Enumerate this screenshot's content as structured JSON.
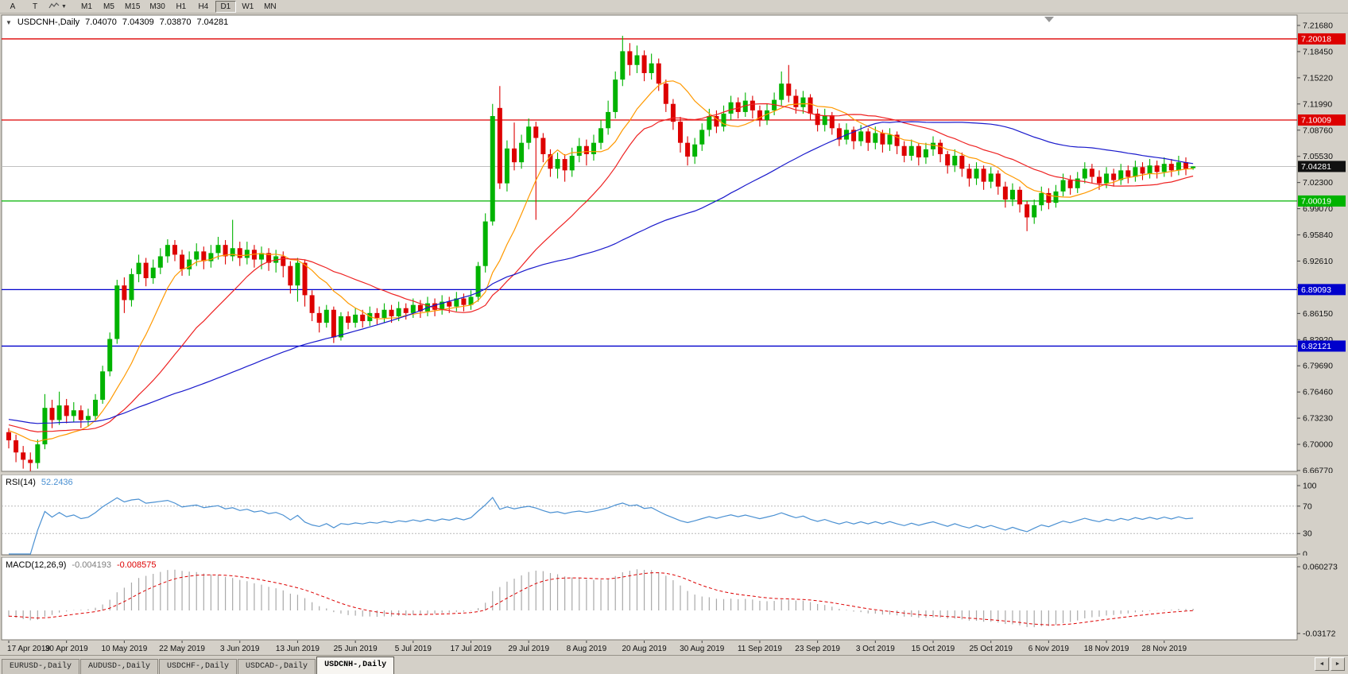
{
  "toolbar": {
    "buttons": [
      "A",
      "T"
    ],
    "timeframes": [
      "M1",
      "M5",
      "M15",
      "M30",
      "H1",
      "H4",
      "D1",
      "W1",
      "MN"
    ],
    "active_timeframe": "D1"
  },
  "header": {
    "symbol": "USDCNH-,Daily",
    "open": "7.04070",
    "high": "7.04309",
    "low": "7.03870",
    "close": "7.04281"
  },
  "rsi": {
    "label": "RSI(14)",
    "value": "52.2436",
    "period": 14,
    "levels": [
      100,
      70,
      30,
      0
    ],
    "line_color": "#4a90d2"
  },
  "macd": {
    "label": "MACD(12,26,9)",
    "value_main": "-0.004193",
    "value_signal": "-0.008575",
    "scale_top": "0.060273",
    "scale_bottom": "-0.03172",
    "hist_color": "#a9a9a9",
    "signal_color": "#dd0000"
  },
  "tabs": {
    "items": [
      "EURUSD-,Daily",
      "AUDUSD-,Daily",
      "USDCHF-,Daily",
      "USDCAD-,Daily",
      "USDCNH-,Daily"
    ],
    "active": "USDCNH-,Daily",
    "scroll_left": "◄",
    "scroll_right": "►"
  },
  "chart_data": {
    "type": "candlestick",
    "symbol": "USDCNH",
    "timeframe": "Daily",
    "bull_color": "#00b300",
    "bear_color": "#dd0000",
    "price_scale": {
      "top": 7.2168,
      "step": 0.0323
    },
    "price_ticks": [
      "7.21680",
      "7.18450",
      "7.15220",
      "7.11990",
      "7.08760",
      "7.05530",
      "7.02300",
      "6.99070",
      "6.95840",
      "6.92610",
      "6.89380",
      "6.86150",
      "6.82920",
      "6.79690",
      "6.76460",
      "6.73230",
      "6.70000",
      "6.66770"
    ],
    "x_labels": [
      "17 Apr 2019",
      "30 Apr 2019",
      "10 May 2019",
      "22 May 2019",
      "3 Jun 2019",
      "13 Jun 2019",
      "25 Jun 2019",
      "5 Jul 2019",
      "17 Jul 2019",
      "29 Jul 2019",
      "8 Aug 2019",
      "20 Aug 2019",
      "30 Aug 2019",
      "11 Sep 2019",
      "23 Sep 2019",
      "3 Oct 2019",
      "15 Oct 2019",
      "25 Oct 2019",
      "6 Nov 2019",
      "18 Nov 2019",
      "28 Nov 2019"
    ],
    "x_label_every": 8,
    "hlines": [
      {
        "price": 7.20018,
        "label": "7.20018",
        "color": "#dd0000"
      },
      {
        "price": 7.10009,
        "label": "7.10009",
        "color": "#dd0000"
      },
      {
        "price": 7.00019,
        "label": "7.00019",
        "color": "#00b300"
      },
      {
        "price": 6.89093,
        "label": "6.89093",
        "color": "#0000cc"
      },
      {
        "price": 6.82121,
        "label": "6.82121",
        "color": "#0000cc"
      }
    ],
    "bid": {
      "price": 7.04281,
      "label": "7.04281",
      "color": "#c0c0c0",
      "badge_color": "#111111"
    },
    "moving_averages": [
      {
        "period": 10,
        "color": "#ff9900"
      },
      {
        "period": 22,
        "color": "#ee2222"
      },
      {
        "period": 55,
        "color": "#1a1acc"
      }
    ],
    "ma_seed_closes": [
      6.758,
      6.755,
      6.752,
      6.75,
      6.747,
      6.744,
      6.742,
      6.74,
      6.738,
      6.736,
      6.735,
      6.734,
      6.732,
      6.731,
      6.73,
      6.729,
      6.728,
      6.727,
      6.726,
      6.725,
      6.724,
      6.723,
      6.722,
      6.721,
      6.72,
      6.719,
      6.718,
      6.716,
      6.714,
      6.712
    ],
    "candles": [
      [
        6.715,
        6.72,
        6.695,
        6.705
      ],
      [
        6.705,
        6.712,
        6.678,
        6.69
      ],
      [
        6.69,
        6.698,
        6.67,
        6.681
      ],
      [
        6.681,
        6.69,
        6.667,
        6.677
      ],
      [
        6.677,
        6.706,
        6.67,
        6.7
      ],
      [
        6.7,
        6.762,
        6.694,
        6.745
      ],
      [
        6.745,
        6.755,
        6.72,
        6.73
      ],
      [
        6.73,
        6.765,
        6.724,
        6.748
      ],
      [
        6.748,
        6.756,
        6.726,
        6.735
      ],
      [
        6.735,
        6.752,
        6.728,
        6.742
      ],
      [
        6.742,
        6.748,
        6.72,
        6.73
      ],
      [
        6.73,
        6.744,
        6.722,
        6.735
      ],
      [
        6.735,
        6.762,
        6.73,
        6.755
      ],
      [
        6.755,
        6.797,
        6.75,
        6.79
      ],
      [
        6.79,
        6.838,
        6.784,
        6.83
      ],
      [
        6.83,
        6.903,
        6.824,
        6.896
      ],
      [
        6.896,
        6.906,
        6.862,
        6.878
      ],
      [
        6.878,
        6.917,
        6.87,
        6.91
      ],
      [
        6.91,
        6.934,
        6.9,
        6.924
      ],
      [
        6.924,
        6.93,
        6.895,
        6.905
      ],
      [
        6.905,
        6.928,
        6.898,
        6.918
      ],
      [
        6.918,
        6.942,
        6.91,
        6.932
      ],
      [
        6.932,
        6.953,
        6.924,
        6.946
      ],
      [
        6.946,
        6.952,
        6.926,
        6.934
      ],
      [
        6.934,
        6.94,
        6.908,
        6.916
      ],
      [
        6.916,
        6.938,
        6.908,
        6.928
      ],
      [
        6.928,
        6.948,
        6.92,
        6.938
      ],
      [
        6.938,
        6.944,
        6.916,
        6.926
      ],
      [
        6.926,
        6.946,
        6.918,
        6.936
      ],
      [
        6.936,
        6.956,
        6.928,
        6.946
      ],
      [
        6.946,
        6.952,
        6.922,
        6.932
      ],
      [
        6.932,
        6.977,
        6.926,
        6.942
      ],
      [
        6.942,
        6.95,
        6.92,
        6.93
      ],
      [
        6.93,
        6.95,
        6.922,
        6.94
      ],
      [
        6.94,
        6.946,
        6.918,
        6.928
      ],
      [
        6.928,
        6.944,
        6.916,
        6.936
      ],
      [
        6.936,
        6.942,
        6.914,
        6.924
      ],
      [
        6.924,
        6.94,
        6.912,
        6.932
      ],
      [
        6.932,
        6.938,
        6.906,
        6.92
      ],
      [
        6.92,
        6.926,
        6.886,
        6.896
      ],
      [
        6.896,
        6.93,
        6.876,
        6.924
      ],
      [
        6.924,
        6.928,
        6.87,
        6.884
      ],
      [
        6.884,
        6.89,
        6.852,
        6.862
      ],
      [
        6.862,
        6.87,
        6.838,
        6.85
      ],
      [
        6.85,
        6.872,
        6.844,
        6.866
      ],
      [
        6.866,
        6.87,
        6.825,
        6.832
      ],
      [
        6.832,
        6.863,
        6.828,
        6.858
      ],
      [
        6.858,
        6.864,
        6.842,
        6.85
      ],
      [
        6.85,
        6.868,
        6.844,
        6.86
      ],
      [
        6.86,
        6.866,
        6.844,
        6.852
      ],
      [
        6.852,
        6.87,
        6.846,
        6.862
      ],
      [
        6.862,
        6.868,
        6.848,
        6.856
      ],
      [
        6.856,
        6.874,
        6.85,
        6.866
      ],
      [
        6.866,
        6.872,
        6.85,
        6.858
      ],
      [
        6.858,
        6.876,
        6.852,
        6.868
      ],
      [
        6.868,
        6.874,
        6.854,
        6.862
      ],
      [
        6.862,
        6.88,
        6.856,
        6.872
      ],
      [
        6.872,
        6.878,
        6.856,
        6.864
      ],
      [
        6.864,
        6.882,
        6.858,
        6.874
      ],
      [
        6.874,
        6.88,
        6.858,
        6.866
      ],
      [
        6.866,
        6.884,
        6.86,
        6.876
      ],
      [
        6.876,
        6.882,
        6.862,
        6.87
      ],
      [
        6.87,
        6.888,
        6.864,
        6.88
      ],
      [
        6.88,
        6.886,
        6.864,
        6.872
      ],
      [
        6.872,
        6.89,
        6.866,
        6.882
      ],
      [
        6.882,
        6.925,
        6.876,
        6.92
      ],
      [
        6.92,
        6.985,
        6.912,
        6.975
      ],
      [
        6.975,
        7.12,
        6.97,
        7.105
      ],
      [
        7.115,
        7.142,
        7.015,
        7.022
      ],
      [
        7.022,
        7.075,
        7.012,
        7.065
      ],
      [
        7.065,
        7.097,
        7.038,
        7.048
      ],
      [
        7.048,
        7.082,
        7.04,
        7.072
      ],
      [
        7.072,
        7.102,
        7.064,
        7.092
      ],
      [
        7.092,
        7.098,
        6.977,
        7.078
      ],
      [
        7.078,
        7.084,
        7.048,
        7.058
      ],
      [
        7.058,
        7.064,
        7.03,
        7.04
      ],
      [
        7.04,
        7.06,
        7.028,
        7.052
      ],
      [
        7.052,
        7.058,
        7.024,
        7.038
      ],
      [
        7.038,
        7.066,
        7.03,
        7.056
      ],
      [
        7.056,
        7.078,
        7.048,
        7.068
      ],
      [
        7.068,
        7.076,
        7.044,
        7.058
      ],
      [
        7.058,
        7.082,
        7.05,
        7.072
      ],
      [
        7.072,
        7.1,
        7.064,
        7.09
      ],
      [
        7.09,
        7.124,
        7.082,
        7.11
      ],
      [
        7.11,
        7.16,
        7.102,
        7.15
      ],
      [
        7.15,
        7.204,
        7.142,
        7.185
      ],
      [
        7.185,
        7.195,
        7.155,
        7.168
      ],
      [
        7.168,
        7.192,
        7.158,
        7.18
      ],
      [
        7.18,
        7.186,
        7.148,
        7.158
      ],
      [
        7.158,
        7.182,
        7.15,
        7.17
      ],
      [
        7.17,
        7.176,
        7.136,
        7.145
      ],
      [
        7.145,
        7.15,
        7.11,
        7.12
      ],
      [
        7.12,
        7.126,
        7.088,
        7.098
      ],
      [
        7.098,
        7.104,
        7.06,
        7.072
      ],
      [
        7.072,
        7.08,
        7.044,
        7.055
      ],
      [
        7.055,
        7.078,
        7.046,
        7.07
      ],
      [
        7.07,
        7.096,
        7.062,
        7.088
      ],
      [
        7.088,
        7.114,
        7.08,
        7.105
      ],
      [
        7.105,
        7.112,
        7.084,
        7.092
      ],
      [
        7.092,
        7.118,
        7.086,
        7.108
      ],
      [
        7.108,
        7.13,
        7.1,
        7.122
      ],
      [
        7.122,
        7.128,
        7.102,
        7.11
      ],
      [
        7.11,
        7.134,
        7.104,
        7.124
      ],
      [
        7.124,
        7.13,
        7.102,
        7.112
      ],
      [
        7.112,
        7.118,
        7.092,
        7.1
      ],
      [
        7.1,
        7.12,
        7.094,
        7.112
      ],
      [
        7.112,
        7.134,
        7.106,
        7.125
      ],
      [
        7.125,
        7.16,
        7.118,
        7.145
      ],
      [
        7.145,
        7.168,
        7.122,
        7.13
      ],
      [
        7.13,
        7.138,
        7.108,
        7.116
      ],
      [
        7.116,
        7.136,
        7.108,
        7.128
      ],
      [
        7.128,
        7.132,
        7.1,
        7.108
      ],
      [
        7.108,
        7.114,
        7.086,
        7.094
      ],
      [
        7.094,
        7.114,
        7.086,
        7.106
      ],
      [
        7.106,
        7.11,
        7.082,
        7.09
      ],
      [
        7.09,
        7.096,
        7.068,
        7.076
      ],
      [
        7.076,
        7.096,
        7.07,
        7.088
      ],
      [
        7.088,
        7.092,
        7.064,
        7.074
      ],
      [
        7.074,
        7.094,
        7.068,
        7.086
      ],
      [
        7.086,
        7.09,
        7.062,
        7.072
      ],
      [
        7.072,
        7.092,
        7.064,
        7.084
      ],
      [
        7.084,
        7.088,
        7.06,
        7.07
      ],
      [
        7.07,
        7.09,
        7.062,
        7.082
      ],
      [
        7.082,
        7.086,
        7.058,
        7.068
      ],
      [
        7.068,
        7.074,
        7.048,
        7.056
      ],
      [
        7.056,
        7.076,
        7.05,
        7.068
      ],
      [
        7.068,
        7.072,
        7.044,
        7.054
      ],
      [
        7.054,
        7.072,
        7.046,
        7.064
      ],
      [
        7.064,
        7.08,
        7.056,
        7.072
      ],
      [
        7.072,
        7.076,
        7.048,
        7.058
      ],
      [
        7.058,
        7.062,
        7.034,
        7.044
      ],
      [
        7.044,
        7.064,
        7.036,
        7.056
      ],
      [
        7.056,
        7.06,
        7.03,
        7.04
      ],
      [
        7.04,
        7.046,
        7.018,
        7.028
      ],
      [
        7.028,
        7.048,
        7.02,
        7.04
      ],
      [
        7.04,
        7.044,
        7.014,
        7.024
      ],
      [
        7.024,
        7.042,
        7.016,
        7.034
      ],
      [
        7.034,
        7.038,
        7.008,
        7.018
      ],
      [
        7.018,
        7.024,
        6.992,
        7.002
      ],
      [
        7.002,
        7.022,
        6.994,
        7.014
      ],
      [
        7.014,
        7.018,
        6.986,
        6.996
      ],
      [
        6.996,
        7.0,
        6.963,
        6.98
      ],
      [
        6.98,
        7.002,
        6.972,
        6.995
      ],
      [
        6.995,
        7.018,
        6.988,
        7.01
      ],
      [
        7.01,
        7.016,
        6.99,
        6.998
      ],
      [
        6.998,
        7.02,
        6.992,
        7.012
      ],
      [
        7.012,
        7.034,
        7.006,
        7.026
      ],
      [
        7.026,
        7.032,
        7.008,
        7.016
      ],
      [
        7.016,
        7.036,
        7.01,
        7.028
      ],
      [
        7.028,
        7.048,
        7.022,
        7.04
      ],
      [
        7.04,
        7.046,
        7.022,
        7.03
      ],
      [
        7.03,
        7.038,
        7.014,
        7.022
      ],
      [
        7.022,
        7.042,
        7.016,
        7.034
      ],
      [
        7.034,
        7.04,
        7.018,
        7.026
      ],
      [
        7.026,
        7.046,
        7.02,
        7.038
      ],
      [
        7.038,
        7.044,
        7.022,
        7.03
      ],
      [
        7.03,
        7.05,
        7.024,
        7.042
      ],
      [
        7.042,
        7.048,
        7.026,
        7.034
      ],
      [
        7.034,
        7.052,
        7.028,
        7.044
      ],
      [
        7.044,
        7.05,
        7.028,
        7.036
      ],
      [
        7.036,
        7.054,
        7.03,
        7.046
      ],
      [
        7.046,
        7.052,
        7.03,
        7.038
      ],
      [
        7.038,
        7.056,
        7.032,
        7.048
      ],
      [
        7.048,
        7.054,
        7.032,
        7.04
      ],
      [
        7.0407,
        7.04309,
        7.0387,
        7.04281
      ]
    ]
  }
}
